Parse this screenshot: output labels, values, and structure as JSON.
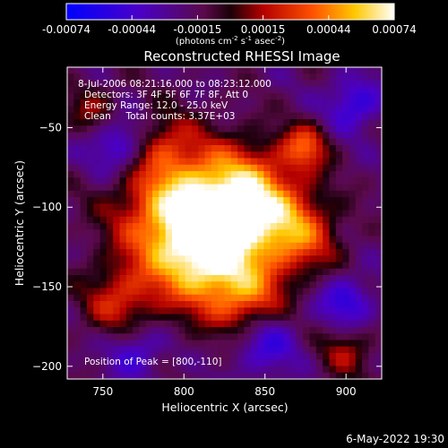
{
  "chart_data": {
    "type": "heatmap",
    "title": "Reconstructed RHESSI Image",
    "xlabel": "Heliocentric X (arcsec)",
    "ylabel": "Heliocentric Y (arcsec)",
    "xlim": [
      728,
      922
    ],
    "ylim": [
      -208,
      -12
    ],
    "xticks": [
      750,
      800,
      850,
      900
    ],
    "yticks": [
      -50,
      -100,
      -150,
      -200
    ],
    "annotations": [
      " 8-Jul-2006 08:21:16.000 to 08:23:12.000",
      "Detectors: 3F 4F 5F 6F 7F 8F, Att 0",
      "Energy Range: 12.0 - 25.0 keV",
      "Clean     Total counts: 3.37E+03"
    ],
    "peak_label": "Position of Peak = [800,-110]",
    "peak": [
      800,
      -110
    ],
    "colorbar": {
      "colormap": "blue-purple-red-orange-yellow-white",
      "range": [
        -0.00074,
        0.00074
      ],
      "tick_labels": [
        "-0.00074",
        "-0.00044",
        "-0.00015",
        "0.00015",
        "0.00044",
        "0.00074"
      ],
      "unit_main": "(photons cm",
      "unit_exp1": "-2",
      "unit_mid": " s",
      "unit_exp2": "-1",
      "unit_end": " asec",
      "unit_exp3": "-2",
      "unit_close": ")"
    },
    "grid": false
  },
  "footer": {
    "timestamp": "6-May-2022 19:30"
  }
}
